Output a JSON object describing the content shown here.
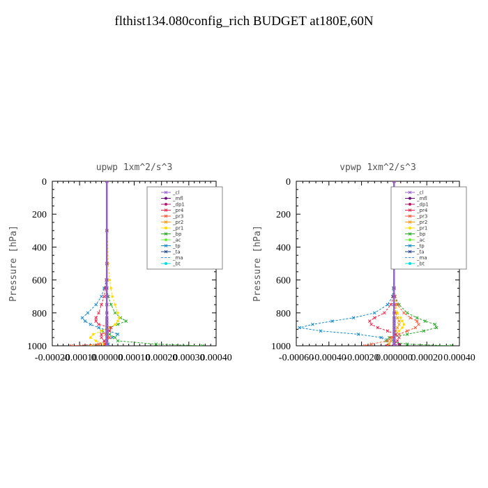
{
  "title": "flthist134.080config_rich  BUDGET at180E,60N",
  "chart_data": [
    {
      "type": "line",
      "title": "upwp   1xm^2/s^3",
      "ylabel": "Pressure [hPa]",
      "xlim": [
        -0.0002,
        0.0004
      ],
      "ylim": [
        1000,
        0
      ],
      "xticks": [
        "-0.00020",
        "-0.00010",
        "0.00000",
        "0.00010",
        "0.00020",
        "0.00030",
        "0.00040"
      ],
      "yticks": [
        "0",
        "200",
        "400",
        "600",
        "800",
        "1000"
      ],
      "legend_position": "top-right",
      "pressure": [
        0,
        300,
        500,
        600,
        650,
        700,
        750,
        800,
        830,
        850,
        870,
        890,
        910,
        930,
        950,
        970,
        990,
        1000
      ],
      "series": [
        {
          "name": "_cl",
          "color": "#9966cc",
          "marker": "x",
          "values": [
            0,
            0,
            0,
            0,
            0,
            0,
            0,
            0,
            0,
            0,
            0,
            0,
            0,
            0,
            0,
            0,
            0,
            0
          ]
        },
        {
          "name": "_mfl",
          "color": "#6a0d7a",
          "marker": "o",
          "values": [
            0,
            0,
            0,
            0,
            0,
            0,
            0,
            0,
            0,
            0,
            0,
            0,
            0,
            0,
            0,
            0,
            0,
            0
          ]
        },
        {
          "name": "_dp1",
          "color": "#b0196b",
          "marker": "o",
          "values": [
            0,
            0,
            0,
            0,
            0,
            0,
            0,
            0,
            0,
            0,
            0,
            0,
            0,
            0,
            0,
            0,
            0,
            0
          ]
        },
        {
          "name": "_pr4",
          "color": "#e8254a",
          "marker": "x",
          "values": [
            0,
            0,
            0,
            -2e-06,
            -5e-06,
            -1e-05,
            -2e-05,
            -3e-05,
            -4e-05,
            -4e-05,
            -3e-05,
            1.5e-05,
            1e-05,
            -2e-05,
            -2e-05,
            -1e-05,
            -5e-06,
            0
          ]
        },
        {
          "name": "_pr3",
          "color": "#ff5533",
          "marker": "x",
          "values": [
            0,
            0,
            0,
            0,
            0,
            0,
            0,
            0,
            0,
            0,
            0,
            0,
            0,
            0,
            1e-05,
            0,
            -3e-05,
            -0.00013
          ]
        },
        {
          "name": "_pr2",
          "color": "#ff9900",
          "marker": "x",
          "values": [
            0,
            0,
            0,
            0,
            0,
            0,
            0,
            0,
            0,
            0,
            0,
            0,
            0,
            -5e-06,
            5e-06,
            0,
            -1e-05,
            -6e-05
          ]
        },
        {
          "name": "_pr1",
          "color": "#ffdd00",
          "marker": "o",
          "values": [
            0,
            2e-06,
            5e-06,
            1e-05,
            1.5e-05,
            2e-05,
            3e-05,
            4e-05,
            4.5e-05,
            4e-05,
            3e-05,
            1e-05,
            -2e-05,
            -5e-05,
            -6e-05,
            -4e-05,
            -1e-05,
            0
          ]
        },
        {
          "name": "_bp",
          "color": "#22aa22",
          "marker": "x",
          "values": [
            0,
            0,
            0,
            0,
            0,
            5e-06,
            1.5e-05,
            3e-05,
            5e-05,
            7e-05,
            4e-05,
            1e-05,
            -2e-05,
            1e-05,
            3e-05,
            4e-05,
            0.00018,
            0.00035
          ]
        },
        {
          "name": "_ac",
          "color": "#66ee33",
          "marker": "o",
          "values": [
            0,
            0,
            0,
            0,
            0,
            0,
            0,
            0,
            0,
            0,
            0,
            0,
            0,
            0,
            0,
            0,
            0,
            0
          ]
        },
        {
          "name": "_tp",
          "color": "#1188cc",
          "marker": "x",
          "values": [
            0,
            0,
            0,
            -2e-06,
            -1e-05,
            -2e-05,
            -4e-05,
            -7e-05,
            -9e-05,
            -8e-05,
            -6e-05,
            -3e-05,
            1e-05,
            4e-05,
            2e-05,
            -1e-05,
            5e-06,
            0
          ]
        },
        {
          "name": "_ta",
          "color": "#224488",
          "marker": "x",
          "values": [
            0,
            0,
            0,
            0,
            0,
            0,
            0,
            0,
            0,
            0,
            0,
            0,
            0,
            0,
            0,
            0,
            0,
            0
          ]
        },
        {
          "name": "_ma",
          "color": "#3399ff",
          "marker": "-",
          "values": [
            0,
            0,
            0,
            0,
            0,
            0,
            0,
            0,
            0,
            0,
            0,
            0,
            0,
            0,
            0,
            0,
            0,
            0
          ]
        },
        {
          "name": "_bt",
          "color": "#00dddd",
          "marker": "o",
          "values": [
            0,
            0,
            0,
            0,
            0,
            0,
            0,
            0,
            0,
            0,
            0,
            0,
            0,
            0,
            0,
            0,
            0,
            0
          ]
        }
      ]
    },
    {
      "type": "line",
      "title": "vpwp   1xm^2/s^3",
      "ylabel": "Pressure [hPa]",
      "xlim": [
        -0.0006,
        0.0004
      ],
      "ylim": [
        1000,
        0
      ],
      "xticks": [
        "-0.00060",
        "-0.00040",
        "-0.00020",
        "0.000000",
        "0.00020",
        "0.00040"
      ],
      "yticks": [
        "0",
        "200",
        "400",
        "600",
        "800",
        "1000"
      ],
      "legend_position": "top-right",
      "pressure": [
        0,
        300,
        500,
        650,
        700,
        750,
        800,
        830,
        850,
        870,
        890,
        910,
        930,
        950,
        970,
        990,
        1000
      ],
      "series": [
        {
          "name": "_cl",
          "color": "#9966cc",
          "marker": "x",
          "values": [
            0,
            0,
            0,
            0,
            0,
            0,
            0,
            0,
            0,
            0,
            0,
            0,
            0,
            0,
            0,
            0,
            0
          ]
        },
        {
          "name": "_mfl",
          "color": "#6a0d7a",
          "marker": "o",
          "values": [
            0,
            0,
            0,
            0,
            0,
            0,
            0,
            0,
            0,
            0,
            0,
            0,
            0,
            0,
            0,
            0,
            0
          ]
        },
        {
          "name": "_dp1",
          "color": "#b0196b",
          "marker": "o",
          "values": [
            0,
            0,
            0,
            0,
            0,
            0,
            0,
            0,
            0,
            0,
            0,
            0,
            0,
            0,
            0,
            3e-05,
            -5e-05
          ]
        },
        {
          "name": "_pr4",
          "color": "#e8254a",
          "marker": "x",
          "values": [
            0,
            0,
            0,
            0,
            -5e-06,
            -2e-05,
            -6e-05,
            -0.00012,
            -0.00015,
            -0.00014,
            -0.0001,
            -4e-05,
            1e-05,
            3e-05,
            2e-05,
            0,
            0
          ]
        },
        {
          "name": "_pr3",
          "color": "#ff5533",
          "marker": "x",
          "values": [
            0,
            0,
            0,
            0,
            5e-06,
            2e-05,
            6e-05,
            0.0001,
            0.00014,
            0.00015,
            0.00013,
            8e-05,
            3e-05,
            -2e-05,
            -4e-05,
            -0.00014,
            -0.00018
          ]
        },
        {
          "name": "_pr2",
          "color": "#ff9900",
          "marker": "x",
          "values": [
            0,
            0,
            0,
            0,
            0,
            5e-06,
            1e-05,
            2e-05,
            3e-05,
            3e-05,
            2e-05,
            1e-05,
            0,
            -1e-05,
            -2e-05,
            -3e-05,
            -4e-05
          ]
        },
        {
          "name": "_pr1",
          "color": "#ffdd00",
          "marker": "o",
          "values": [
            0,
            0,
            0,
            0,
            5e-06,
            1e-05,
            2e-05,
            4e-05,
            5e-05,
            6e-05,
            5e-05,
            3e-05,
            1e-05,
            0,
            0,
            0,
            0
          ]
        },
        {
          "name": "_bp",
          "color": "#22aa22",
          "marker": "x",
          "values": [
            0,
            0,
            0,
            0,
            5e-06,
            3e-05,
            8e-05,
            0.00014,
            0.00019,
            0.00025,
            0.00026,
            0.00018,
            8e-05,
            -3e-05,
            -5e-05,
            8e-05,
            0.00035
          ]
        },
        {
          "name": "_ac",
          "color": "#66ee33",
          "marker": "o",
          "values": [
            0,
            0,
            0,
            0,
            0,
            0,
            0,
            0,
            0,
            0,
            0,
            0,
            0,
            0,
            0,
            0,
            0
          ]
        },
        {
          "name": "_tp",
          "color": "#1188cc",
          "marker": "x",
          "values": [
            0,
            0,
            0,
            -5e-06,
            -1e-05,
            -4e-05,
            -0.00012,
            -0.00025,
            -0.00038,
            -0.0005,
            -0.00058,
            -0.00045,
            -0.00022,
            -8e-05,
            0,
            0,
            0
          ]
        },
        {
          "name": "_ta",
          "color": "#224488",
          "marker": "x",
          "values": [
            0,
            0,
            0,
            0,
            0,
            0,
            0,
            0,
            0,
            0,
            0,
            0,
            0,
            0,
            0,
            0,
            0
          ]
        },
        {
          "name": "_ma",
          "color": "#3399ff",
          "marker": "-",
          "values": [
            0,
            0,
            0,
            0,
            0,
            0,
            0,
            0,
            0,
            0,
            0,
            0,
            0,
            0,
            0,
            0,
            0
          ]
        },
        {
          "name": "_bt",
          "color": "#00dddd",
          "marker": "o",
          "values": [
            0,
            0,
            0,
            0,
            0,
            0,
            0,
            0,
            0,
            0,
            0,
            0,
            0,
            0,
            0,
            0,
            0
          ]
        }
      ]
    }
  ]
}
